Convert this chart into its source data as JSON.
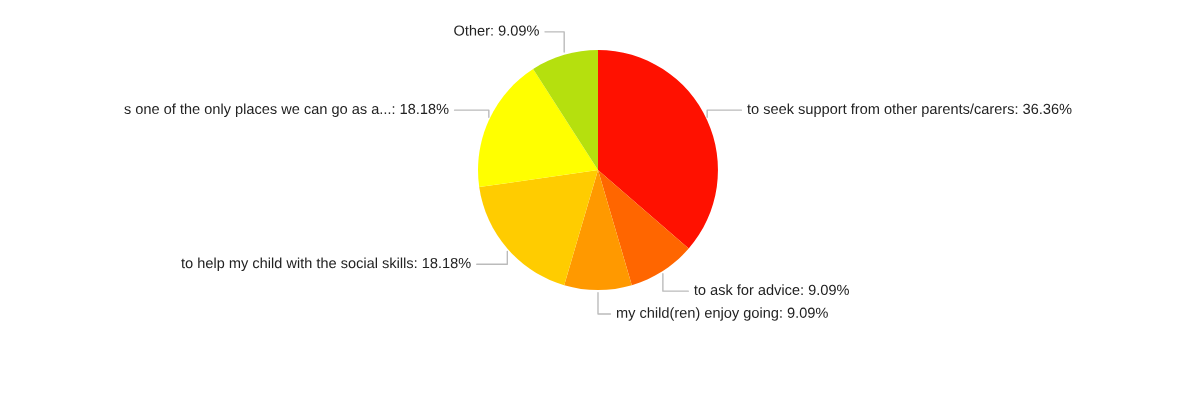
{
  "chart_data": {
    "type": "pie",
    "categories": [
      "to seek support from other parents/carers",
      "to ask for advice",
      "my child(ren) enjoy going",
      "to help my child with the social skills",
      "s one of the only places we can go as a...",
      "Other"
    ],
    "values": [
      36.36,
      9.09,
      9.09,
      18.18,
      18.18,
      9.09
    ],
    "value_labels": [
      "36.36%",
      "9.09%",
      "9.09%",
      "18.18%",
      "18.18%",
      "9.09%"
    ],
    "colors": [
      "#ff1100",
      "#ff6600",
      "#ff9900",
      "#ffcc00",
      "#ffff00",
      "#b5e00e"
    ],
    "legend": false
  }
}
